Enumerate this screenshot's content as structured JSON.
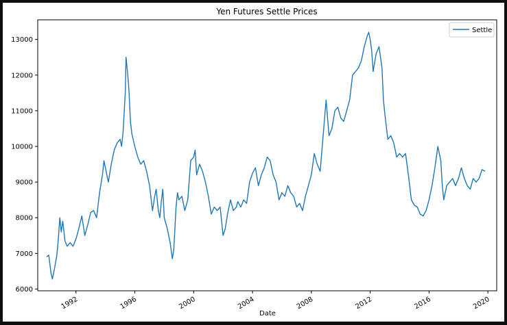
{
  "chart_data": {
    "type": "line",
    "title": "Yen Futures Settle Prices",
    "xlabel": "Date",
    "ylabel": "",
    "legend": {
      "placement": "top-right",
      "entries": [
        "Settle"
      ]
    },
    "grid": false,
    "xlim": [
      1989.4,
      2020.6
    ],
    "ylim": [
      5950,
      13550
    ],
    "x_ticks": [
      "1992",
      "1996",
      "2000",
      "2004",
      "2008",
      "2012",
      "2016",
      "2020"
    ],
    "y_ticks": [
      "6000",
      "7000",
      "8000",
      "9000",
      "10000",
      "11000",
      "12000",
      "13000"
    ],
    "series": [
      {
        "name": "Settle",
        "color": "#1f77b4",
        "points": [
          [
            1990.0,
            6900
          ],
          [
            1990.15,
            6950
          ],
          [
            1990.3,
            6450
          ],
          [
            1990.4,
            6280
          ],
          [
            1990.55,
            6600
          ],
          [
            1990.7,
            6950
          ],
          [
            1990.8,
            7400
          ],
          [
            1990.9,
            8000
          ],
          [
            1991.0,
            7600
          ],
          [
            1991.1,
            7900
          ],
          [
            1991.25,
            7350
          ],
          [
            1991.4,
            7200
          ],
          [
            1991.6,
            7300
          ],
          [
            1991.8,
            7200
          ],
          [
            1992.0,
            7400
          ],
          [
            1992.2,
            7700
          ],
          [
            1992.4,
            8050
          ],
          [
            1992.6,
            7500
          ],
          [
            1992.8,
            7800
          ],
          [
            1993.0,
            8150
          ],
          [
            1993.2,
            8200
          ],
          [
            1993.4,
            8000
          ],
          [
            1993.6,
            8700
          ],
          [
            1993.8,
            9200
          ],
          [
            1993.9,
            9600
          ],
          [
            1994.0,
            9400
          ],
          [
            1994.2,
            9000
          ],
          [
            1994.4,
            9500
          ],
          [
            1994.6,
            9900
          ],
          [
            1994.8,
            10100
          ],
          [
            1995.0,
            10200
          ],
          [
            1995.1,
            10000
          ],
          [
            1995.2,
            10400
          ],
          [
            1995.35,
            11500
          ],
          [
            1995.4,
            12500
          ],
          [
            1995.5,
            12100
          ],
          [
            1995.6,
            11600
          ],
          [
            1995.7,
            10700
          ],
          [
            1995.8,
            10350
          ],
          [
            1996.0,
            10000
          ],
          [
            1996.2,
            9700
          ],
          [
            1996.4,
            9500
          ],
          [
            1996.6,
            9600
          ],
          [
            1996.8,
            9300
          ],
          [
            1997.0,
            8900
          ],
          [
            1997.2,
            8200
          ],
          [
            1997.35,
            8600
          ],
          [
            1997.45,
            8800
          ],
          [
            1997.6,
            8200
          ],
          [
            1997.7,
            8000
          ],
          [
            1997.8,
            8450
          ],
          [
            1997.9,
            8800
          ],
          [
            1998.0,
            8000
          ],
          [
            1998.2,
            7700
          ],
          [
            1998.4,
            7300
          ],
          [
            1998.55,
            6850
          ],
          [
            1998.65,
            7100
          ],
          [
            1998.8,
            8300
          ],
          [
            1998.9,
            8700
          ],
          [
            1999.0,
            8500
          ],
          [
            1999.2,
            8600
          ],
          [
            1999.4,
            8200
          ],
          [
            1999.6,
            8500
          ],
          [
            1999.8,
            9600
          ],
          [
            2000.0,
            9700
          ],
          [
            2000.1,
            9900
          ],
          [
            2000.2,
            9200
          ],
          [
            2000.4,
            9500
          ],
          [
            2000.6,
            9300
          ],
          [
            2000.8,
            9000
          ],
          [
            2001.0,
            8600
          ],
          [
            2001.2,
            8100
          ],
          [
            2001.4,
            8300
          ],
          [
            2001.6,
            8200
          ],
          [
            2001.8,
            8300
          ],
          [
            2002.0,
            7500
          ],
          [
            2002.15,
            7700
          ],
          [
            2002.3,
            8100
          ],
          [
            2002.5,
            8500
          ],
          [
            2002.7,
            8200
          ],
          [
            2002.9,
            8300
          ],
          [
            2003.0,
            8450
          ],
          [
            2003.2,
            8300
          ],
          [
            2003.4,
            8500
          ],
          [
            2003.6,
            8400
          ],
          [
            2003.8,
            9000
          ],
          [
            2004.0,
            9250
          ],
          [
            2004.2,
            9400
          ],
          [
            2004.4,
            8900
          ],
          [
            2004.6,
            9200
          ],
          [
            2004.8,
            9400
          ],
          [
            2005.0,
            9700
          ],
          [
            2005.2,
            9600
          ],
          [
            2005.4,
            9200
          ],
          [
            2005.6,
            9000
          ],
          [
            2005.8,
            8500
          ],
          [
            2006.0,
            8700
          ],
          [
            2006.2,
            8600
          ],
          [
            2006.4,
            8900
          ],
          [
            2006.6,
            8700
          ],
          [
            2006.8,
            8600
          ],
          [
            2007.0,
            8300
          ],
          [
            2007.2,
            8400
          ],
          [
            2007.4,
            8200
          ],
          [
            2007.6,
            8600
          ],
          [
            2007.8,
            8900
          ],
          [
            2008.0,
            9200
          ],
          [
            2008.2,
            9800
          ],
          [
            2008.4,
            9500
          ],
          [
            2008.6,
            9300
          ],
          [
            2008.8,
            10300
          ],
          [
            2009.0,
            11300
          ],
          [
            2009.2,
            10300
          ],
          [
            2009.4,
            10500
          ],
          [
            2009.6,
            11000
          ],
          [
            2009.8,
            11100
          ],
          [
            2010.0,
            10800
          ],
          [
            2010.2,
            10700
          ],
          [
            2010.4,
            11000
          ],
          [
            2010.6,
            11300
          ],
          [
            2010.8,
            12000
          ],
          [
            2011.0,
            12100
          ],
          [
            2011.2,
            12200
          ],
          [
            2011.4,
            12400
          ],
          [
            2011.6,
            12800
          ],
          [
            2011.8,
            13100
          ],
          [
            2011.9,
            13200
          ],
          [
            2012.0,
            13000
          ],
          [
            2012.1,
            12700
          ],
          [
            2012.2,
            12100
          ],
          [
            2012.4,
            12600
          ],
          [
            2012.6,
            12800
          ],
          [
            2012.8,
            12200
          ],
          [
            2012.9,
            11300
          ],
          [
            2013.0,
            10900
          ],
          [
            2013.2,
            10200
          ],
          [
            2013.4,
            10300
          ],
          [
            2013.6,
            10100
          ],
          [
            2013.8,
            9700
          ],
          [
            2014.0,
            9800
          ],
          [
            2014.2,
            9700
          ],
          [
            2014.4,
            9800
          ],
          [
            2014.6,
            9200
          ],
          [
            2014.8,
            8500
          ],
          [
            2015.0,
            8350
          ],
          [
            2015.2,
            8300
          ],
          [
            2015.4,
            8100
          ],
          [
            2015.6,
            8050
          ],
          [
            2015.8,
            8200
          ],
          [
            2016.0,
            8500
          ],
          [
            2016.2,
            8900
          ],
          [
            2016.4,
            9400
          ],
          [
            2016.6,
            10000
          ],
          [
            2016.8,
            9600
          ],
          [
            2016.9,
            8900
          ],
          [
            2017.0,
            8500
          ],
          [
            2017.2,
            8900
          ],
          [
            2017.4,
            9000
          ],
          [
            2017.6,
            9100
          ],
          [
            2017.8,
            8900
          ],
          [
            2018.0,
            9100
          ],
          [
            2018.2,
            9400
          ],
          [
            2018.4,
            9100
          ],
          [
            2018.6,
            8900
          ],
          [
            2018.8,
            8800
          ],
          [
            2019.0,
            9100
          ],
          [
            2019.2,
            9000
          ],
          [
            2019.4,
            9100
          ],
          [
            2019.6,
            9350
          ],
          [
            2019.8,
            9300
          ]
        ]
      }
    ]
  }
}
